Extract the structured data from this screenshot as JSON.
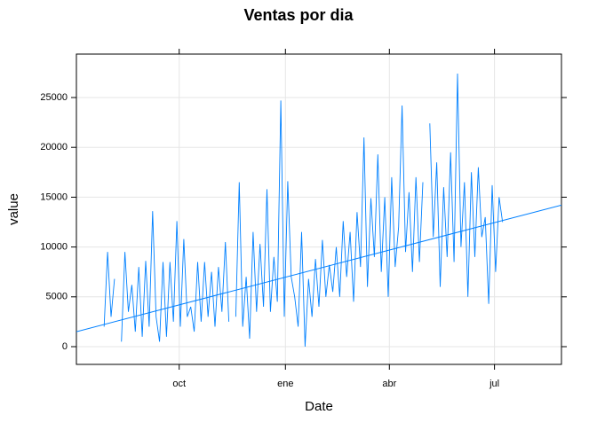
{
  "chart_data": {
    "type": "line",
    "title": "Ventas por dia",
    "xlabel": "Date",
    "ylabel": "value",
    "x": [
      -65,
      -62,
      -59,
      -56,
      -53,
      -50,
      -47,
      -44,
      -41,
      -38,
      -35,
      -32,
      -29,
      -26,
      -23,
      -20,
      -17,
      -14,
      -11,
      -8,
      -5,
      -2,
      1,
      4,
      7,
      10,
      13,
      16,
      19,
      22,
      25,
      28,
      31,
      34,
      37,
      40,
      43,
      46,
      49,
      52,
      55,
      58,
      61,
      64,
      67,
      70,
      73,
      76,
      79,
      82,
      85,
      88,
      91,
      94,
      97,
      100,
      103,
      106,
      109,
      112,
      115,
      118,
      121,
      124,
      127,
      130,
      133,
      136,
      139,
      142,
      145,
      148,
      151,
      154,
      157,
      160,
      163,
      166,
      169,
      172,
      175,
      178,
      181,
      184,
      187,
      190,
      193,
      196,
      199,
      202,
      205,
      208,
      211,
      214,
      217,
      220,
      223,
      226,
      229,
      232,
      235,
      238,
      241,
      244,
      247,
      250,
      253,
      256,
      259,
      262,
      265,
      268,
      271,
      274,
      277,
      280
    ],
    "series": [
      {
        "name": "value",
        "color": "#0080ff",
        "values": [
          2000,
          9500,
          3000,
          6800,
          null,
          500,
          9500,
          3500,
          6200,
          1500,
          8000,
          1000,
          8600,
          2000,
          13600,
          3000,
          500,
          8500,
          1000,
          8500,
          2500,
          12600,
          2000,
          10800,
          3000,
          4000,
          1500,
          8500,
          2500,
          8500,
          3000,
          7500,
          2000,
          8000,
          3500,
          10500,
          2500,
          null,
          3000,
          16500,
          2000,
          7000,
          800,
          11500,
          3500,
          10300,
          4000,
          15800,
          3500,
          9000,
          4500,
          24700,
          3000,
          16600,
          7000,
          5000,
          2000,
          11500,
          0,
          6800,
          3000,
          8800,
          4000,
          10700,
          5000,
          8200,
          5500,
          10000,
          5000,
          12600,
          7000,
          11500,
          4500,
          13500,
          8000,
          21000,
          6000,
          14900,
          9000,
          19300,
          7500,
          15000,
          5000,
          17000,
          8000,
          12000,
          24200,
          9500,
          15500,
          7500,
          17000,
          8500,
          16500,
          null,
          22400,
          11000,
          18500,
          6000,
          16000,
          9000,
          19500,
          8500,
          27400,
          10000,
          16500,
          5000,
          17500,
          9000,
          18000,
          11000,
          13000,
          4300,
          16200,
          7500,
          15000,
          12500
        ]
      }
    ],
    "trend": {
      "color": "#0080ff",
      "x": [
        -89,
        331
      ],
      "values": [
        1500,
        14200
      ]
    },
    "xlim": [
      -89,
      331
    ],
    "xticks": [
      {
        "value": 0,
        "label": "oct"
      },
      {
        "value": 92,
        "label": "ene"
      },
      {
        "value": 182,
        "label": "abr"
      },
      {
        "value": 273,
        "label": "jul"
      }
    ],
    "ylim": [
      -1780,
      29360
    ],
    "yticks": [
      0,
      5000,
      10000,
      15000,
      20000,
      25000
    ],
    "grid": true
  }
}
